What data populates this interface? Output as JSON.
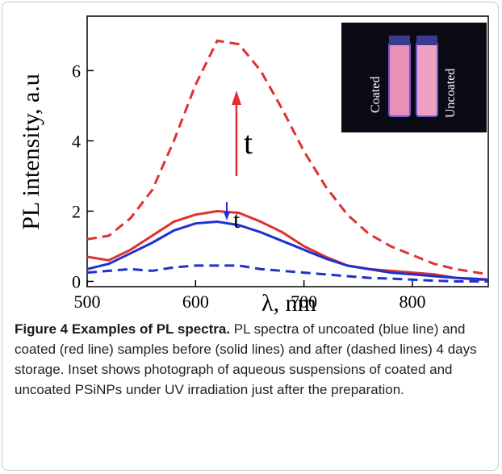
{
  "chart_data": {
    "type": "line",
    "xlabel": "λ, nm",
    "ylabel": "PL intensity, a.u",
    "x": [
      500,
      520,
      540,
      560,
      580,
      600,
      620,
      640,
      660,
      680,
      700,
      720,
      740,
      760,
      780,
      800,
      820,
      840,
      860,
      870
    ],
    "series": [
      {
        "color": "#e03030",
        "dashed": true,
        "values": [
          1.2,
          1.3,
          1.8,
          2.6,
          4.0,
          5.6,
          6.85,
          6.75,
          6.0,
          4.9,
          3.7,
          2.7,
          1.9,
          1.35,
          1.0,
          0.75,
          0.5,
          0.35,
          0.25,
          0.2
        ]
      },
      {
        "color": "#e03030",
        "dashed": false,
        "values": [
          0.7,
          0.6,
          0.9,
          1.3,
          1.7,
          1.9,
          2.0,
          1.95,
          1.7,
          1.4,
          1.0,
          0.7,
          0.45,
          0.35,
          0.3,
          0.25,
          0.2,
          0.1,
          0.05,
          0.05
        ]
      },
      {
        "color": "#2030d0",
        "dashed": false,
        "values": [
          0.35,
          0.5,
          0.8,
          1.1,
          1.45,
          1.65,
          1.7,
          1.6,
          1.4,
          1.15,
          0.9,
          0.65,
          0.45,
          0.35,
          0.25,
          0.2,
          0.15,
          0.1,
          0.07,
          0.05
        ]
      },
      {
        "color": "#2030d0",
        "dashed": true,
        "values": [
          0.25,
          0.3,
          0.35,
          0.3,
          0.4,
          0.45,
          0.45,
          0.45,
          0.35,
          0.3,
          0.25,
          0.2,
          0.15,
          0.1,
          0.08,
          0.05,
          0.02,
          0.0,
          0.0,
          0.0
        ]
      }
    ],
    "xlim": [
      500,
      870
    ],
    "xticks": [
      500,
      600,
      700,
      800
    ],
    "ylim": [
      -0.15,
      7.55
    ],
    "yticks": [
      0,
      2,
      4,
      6
    ],
    "annotations": [
      "t",
      "t"
    ],
    "inset_labels": [
      "Coated",
      "Uncoated"
    ]
  },
  "caption": {
    "label": "Figure 4 Examples of PL spectra.",
    "text": "PL spectra of uncoated (blue line) and coated (red line) samples before (solid lines) and after (dashed lines) 4 days storage. Inset shows photograph of aqueous suspensions of coated and uncoated PSiNPs under UV irradiation just after the preparation."
  }
}
